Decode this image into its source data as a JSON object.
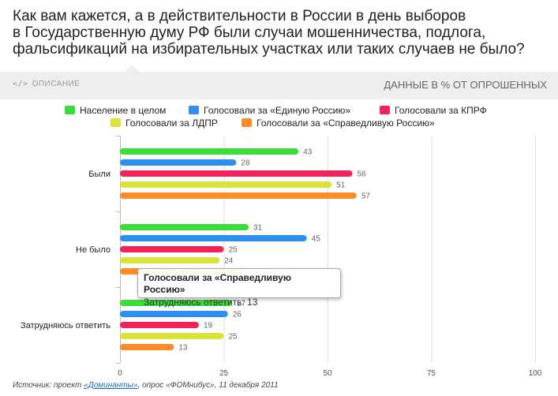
{
  "header": {
    "title_lines": [
      "Как вам кажется, а в действительности в России в день выборов",
      "в Государственную думу РФ были случаи мошенничества, подлога,",
      "фальсификаций на избирательных участках или таких случаев не было?"
    ]
  },
  "panel": {
    "description_label": "ОПИСАНИЕ",
    "units_label": "ДАННЫЕ В % ОТ ОПРОШЕННЫХ"
  },
  "colors": {
    "population": "#3ddc3d",
    "edinaya_rossiya": "#2f8ef0",
    "kprf": "#f0245a",
    "ldpr": "#dde23a",
    "spravedlivaya_rossiya": "#f98c29",
    "grid": "#dddddd",
    "axis": "#bbbbbb"
  },
  "chart_data": {
    "type": "bar",
    "orientation": "horizontal",
    "categories": [
      "Были",
      "Не было",
      "Затрудняюсь ответить"
    ],
    "series": [
      {
        "name": "Население в целом",
        "color": "#3ddc3d",
        "values": [
          43,
          31,
          27
        ]
      },
      {
        "name": "Голосовали за «Единую Россию»",
        "color": "#2f8ef0",
        "values": [
          28,
          45,
          26
        ]
      },
      {
        "name": "Голосовали за КПРФ",
        "color": "#f0245a",
        "values": [
          56,
          25,
          19
        ]
      },
      {
        "name": "Голосовали за ЛДПР",
        "color": "#dde23a",
        "values": [
          51,
          24,
          25
        ]
      },
      {
        "name": "Голосовали за «Справедливую Россию»",
        "color": "#f98c29",
        "values": [
          57,
          30,
          13
        ]
      }
    ],
    "xlim": [
      0,
      100
    ],
    "xticks": [
      0,
      25,
      50,
      75,
      100
    ],
    "grid": true,
    "legend": "top"
  },
  "tooltip": {
    "title": "Голосовали за «Справедливую Россию»",
    "line": "Затрудняюсь ответить: 13"
  },
  "source": {
    "prefix": "Источник: проект ",
    "link_text": "«Доминанты»",
    "suffix": ", опрос «ФОМнибус», 11 декабря 2011"
  }
}
